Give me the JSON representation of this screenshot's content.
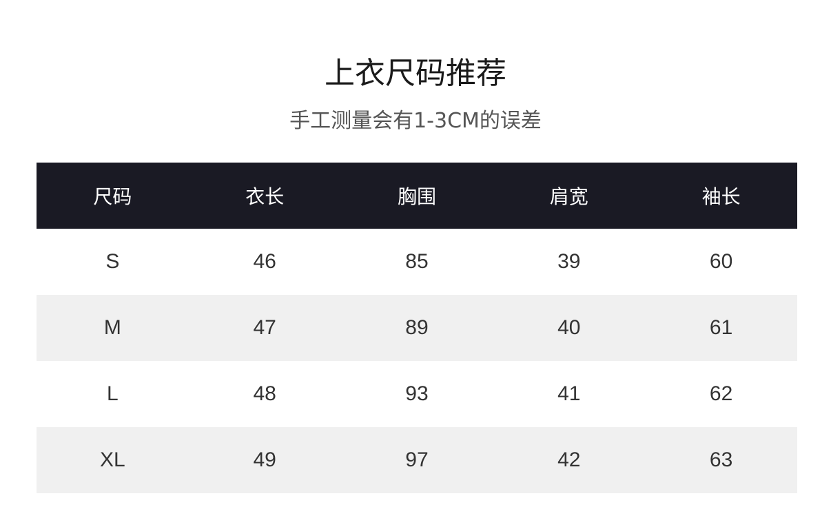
{
  "title": "上衣尺码推荐",
  "subtitle": "手工测量会有1-3CM的误差",
  "table": {
    "headers": [
      "尺码",
      "衣长",
      "胸围",
      "肩宽",
      "袖长"
    ],
    "rows": [
      [
        "S",
        "46",
        "85",
        "39",
        "60"
      ],
      [
        "M",
        "47",
        "89",
        "40",
        "61"
      ],
      [
        "L",
        "48",
        "93",
        "41",
        "62"
      ],
      [
        "XL",
        "49",
        "97",
        "42",
        "63"
      ]
    ]
  },
  "colors": {
    "header_bg": "#1a1a24",
    "alt_row_bg": "#f0f0f0"
  }
}
